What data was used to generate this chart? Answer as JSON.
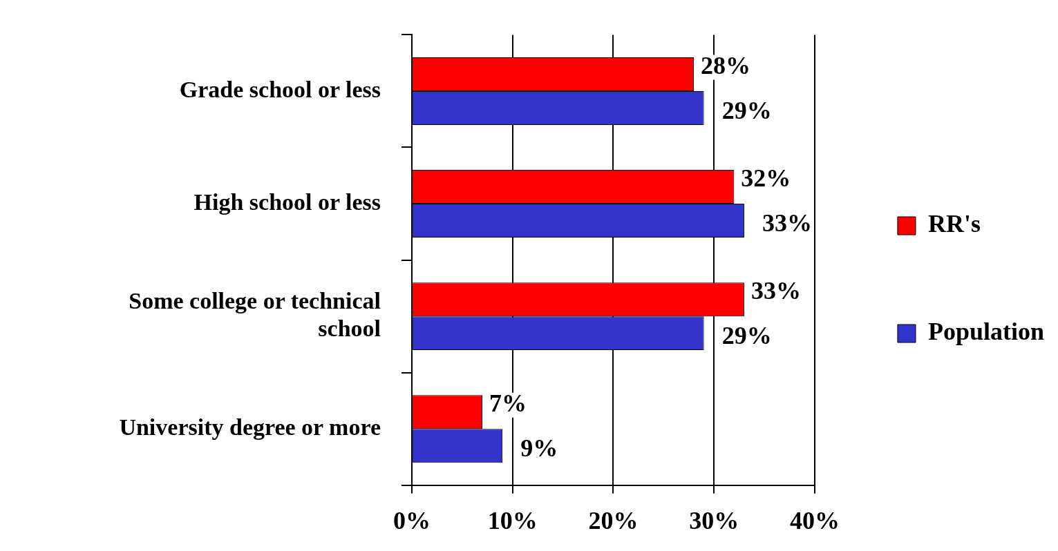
{
  "chart_data": {
    "type": "bar",
    "orientation": "horizontal",
    "categories": [
      "Grade school or less",
      "High school or less",
      "Some college or technical school",
      "University degree or more"
    ],
    "series": [
      {
        "name": "RR's",
        "color": "#ff0000",
        "values": [
          28,
          32,
          33,
          7
        ],
        "value_labels": [
          "28%",
          "32%",
          "33%",
          "7%"
        ]
      },
      {
        "name": "Population",
        "color": "#3333cc",
        "values": [
          29,
          33,
          29,
          9
        ],
        "value_labels": [
          "29%",
          "33%",
          "29%",
          "9%"
        ]
      }
    ],
    "xlim": [
      0,
      40
    ],
    "xticks": [
      {
        "value": 0,
        "label": "0%"
      },
      {
        "value": 10,
        "label": "10%"
      },
      {
        "value": 20,
        "label": "20%"
      },
      {
        "value": 30,
        "label": "30%"
      },
      {
        "value": 40,
        "label": "40%"
      }
    ],
    "grid": "x",
    "legend": "right"
  }
}
